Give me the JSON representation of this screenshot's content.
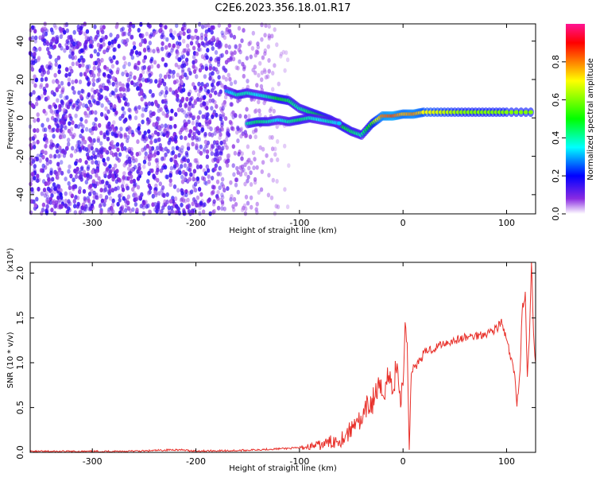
{
  "title": "C2E6.2023.356.18.01.R17",
  "chart_data": [
    {
      "type": "heatmap",
      "xlabel": "Height of straight line (km)",
      "ylabel": "Frequency (Hz)",
      "xlim": [
        -360,
        128
      ],
      "ylim": [
        -50,
        49
      ],
      "xticks": [
        -300,
        -200,
        -100,
        0,
        100
      ],
      "xtick_labels": [
        "-300",
        "-200",
        "-100",
        "0",
        "100"
      ],
      "yticks": [
        -40,
        -20,
        0,
        20,
        40
      ],
      "ytick_labels": [
        "-40",
        "-20",
        "0",
        "20",
        "40"
      ],
      "colorbar": {
        "label": "Normalized spectral amplitude",
        "range": [
          0,
          1
        ],
        "ticks": [
          0.0,
          0.2,
          0.4,
          0.6,
          0.8
        ],
        "tick_labels": [
          "0.0",
          "0.2",
          "0.4",
          "0.6",
          "0.8"
        ],
        "colors": [
          "#ffffff",
          "#8a2be2",
          "#0000ff",
          "#00ffff",
          "#00ff00",
          "#ffff00",
          "#ff7f00",
          "#ff0000",
          "#ff1493"
        ]
      },
      "noise_region_x": [
        -360,
        -110
      ],
      "tracks": [
        {
          "x": [
            -170,
            -160,
            -150,
            -140,
            -130,
            -120,
            -110,
            -100,
            -90,
            -80,
            -70,
            -60,
            -50,
            -40,
            -30,
            -20,
            -10,
            0,
            10,
            20,
            40,
            60,
            80,
            100,
            128
          ],
          "y": [
            14,
            12,
            13,
            12,
            11,
            10,
            9,
            5,
            3,
            1,
            -1,
            -4,
            -7,
            -9,
            -3,
            1,
            1,
            2,
            2,
            3,
            3,
            3,
            3,
            3,
            3
          ],
          "amplitude": [
            0.3,
            0.4,
            0.4,
            0.35,
            0.4,
            0.5,
            0.45,
            0.4,
            0.45,
            0.5,
            0.45,
            0.5,
            0.45,
            0.4,
            0.55,
            0.8,
            0.85,
            0.75,
            0.8,
            0.7,
            0.65,
            0.6,
            0.6,
            0.6,
            0.6
          ]
        },
        {
          "x": [
            -150,
            -140,
            -130,
            -120,
            -110,
            -100,
            -90,
            -80,
            -70,
            -60
          ],
          "y": [
            -3,
            -2,
            -2,
            -1,
            -2,
            -1,
            0,
            -1,
            -2,
            -3
          ],
          "amplitude": [
            0.4,
            0.45,
            0.4,
            0.35,
            0.4,
            0.45,
            0.4,
            0.35,
            0.4,
            0.3
          ]
        }
      ]
    },
    {
      "type": "line",
      "xlabel": "Height of straight line (km)",
      "ylabel": "SNR (10 * v/v)",
      "y_multiplier": "(x10⁴)",
      "xlim": [
        -360,
        128
      ],
      "ylim": [
        0,
        2.12
      ],
      "xticks": [
        -300,
        -200,
        -100,
        0,
        100
      ],
      "xtick_labels": [
        "-300",
        "-200",
        "-100",
        "0",
        "100"
      ],
      "yticks": [
        0.0,
        0.5,
        1.0,
        1.5,
        2.0
      ],
      "ytick_labels": [
        "0.0",
        "0.5",
        "1.0",
        "1.5",
        "2.0"
      ],
      "line_color": "#e8302a",
      "series": [
        {
          "x": [
            -360,
            -300,
            -250,
            -220,
            -200,
            -160,
            -140,
            -120,
            -100,
            -80,
            -60,
            -50,
            -45,
            -40,
            -35,
            -30,
            -25,
            -20,
            -15,
            -10,
            -5,
            -3,
            0,
            2,
            4,
            6,
            8,
            10,
            15,
            20,
            25,
            30,
            35,
            40,
            50,
            60,
            70,
            80,
            85,
            90,
            95,
            100,
            105,
            108,
            110,
            113,
            115,
            118,
            120,
            122,
            124,
            126,
            128
          ],
          "y": [
            0.01,
            0.01,
            0.015,
            0.03,
            0.015,
            0.02,
            0.03,
            0.04,
            0.05,
            0.08,
            0.15,
            0.25,
            0.4,
            0.3,
            0.5,
            0.55,
            0.7,
            0.65,
            0.85,
            0.75,
            0.95,
            0.6,
            0.7,
            1.45,
            1.2,
            0.05,
            0.9,
            0.95,
            1.0,
            1.1,
            1.15,
            1.15,
            1.2,
            1.22,
            1.25,
            1.28,
            1.3,
            1.33,
            1.35,
            1.38,
            1.45,
            1.25,
            1.0,
            0.85,
            0.55,
            0.9,
            1.6,
            1.75,
            0.85,
            1.25,
            2.1,
            1.3,
            1.0
          ]
        }
      ]
    }
  ]
}
